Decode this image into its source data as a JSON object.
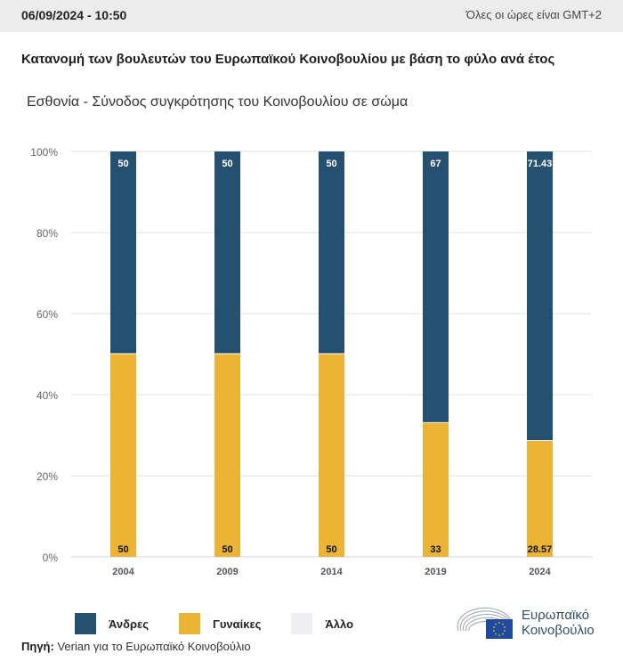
{
  "header": {
    "datetime": "06/09/2024 - 10:50",
    "timezone_note": "Όλες οι ώρες είναι GMT+2"
  },
  "title": "Κατανομή των βουλευτών του Ευρωπαϊκού Κοινοβουλίου με βάση το φύλο ανά έτος",
  "subtitle": "Εσθονία - Σύνοδος συγκρότησης του Κοινοβουλίου σε σώμα",
  "colors": {
    "men": "#26506f",
    "women": "#ecb434",
    "other": "#eceef0",
    "grid": "#e2e2e2",
    "axis_text": "#666666"
  },
  "chart_data": {
    "type": "bar",
    "stacked": true,
    "title": "Κατανομή των βουλευτών του Ευρωπαϊκού Κοινοβουλίου με βάση το φύλο ανά έτος",
    "subtitle": "Εσθονία - Σύνοδος συγκρότησης του Κοινοβουλίου σε σώμα",
    "xlabel": "",
    "ylabel": "",
    "categories": [
      "2004",
      "2009",
      "2014",
      "2019",
      "2024"
    ],
    "series": [
      {
        "name": "Γυναίκες",
        "values": [
          50,
          50,
          50,
          33,
          28.57
        ],
        "labels": [
          "50",
          "50",
          "50",
          "33",
          "28.57"
        ]
      },
      {
        "name": "Άνδρες",
        "values": [
          50,
          50,
          50,
          67,
          71.43
        ],
        "labels": [
          "50",
          "50",
          "50",
          "67",
          "71.43"
        ]
      },
      {
        "name": "Άλλο",
        "values": [
          0,
          0,
          0,
          0,
          0
        ],
        "labels": [
          "",
          "",
          "",
          "",
          ""
        ]
      }
    ],
    "ylim": [
      0,
      100
    ],
    "yticks": [
      0,
      20,
      40,
      60,
      80,
      100
    ],
    "ytick_labels": [
      "0%",
      "20%",
      "40%",
      "60%",
      "80%",
      "100%"
    ],
    "grid": true,
    "legend": {
      "position": "bottom-left",
      "entries": [
        "Άνδρες",
        "Γυναίκες",
        "Άλλο"
      ]
    }
  },
  "legend": [
    {
      "label": "Άνδρες",
      "color_key": "men"
    },
    {
      "label": "Γυναίκες",
      "color_key": "women"
    },
    {
      "label": "Άλλο",
      "color_key": "other"
    }
  ],
  "footer": {
    "source_label": "Πηγή:",
    "source_text": " Verian για το Ευρωπαϊκό Κοινοβούλιο",
    "logo_line1": "Ευρωπαϊκό",
    "logo_line2": "Κοινοβούλιο"
  }
}
